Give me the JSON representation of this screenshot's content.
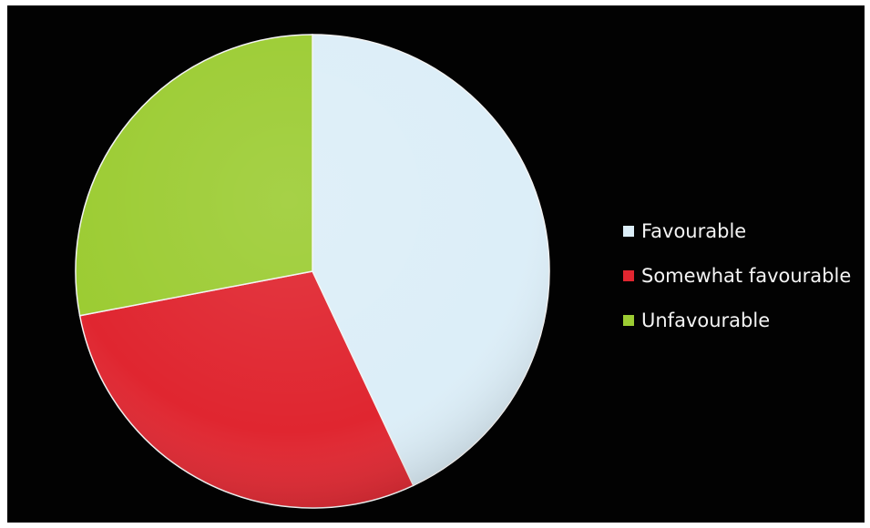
{
  "chart_data": {
    "type": "pie",
    "categories": [
      "Favourable",
      "Somewhat favourable",
      "Unfavourable"
    ],
    "values": [
      43,
      29,
      28
    ],
    "colors": [
      "#dceef8",
      "#e02630",
      "#9ccc33"
    ],
    "legend_position": "right",
    "background": "#020202"
  }
}
